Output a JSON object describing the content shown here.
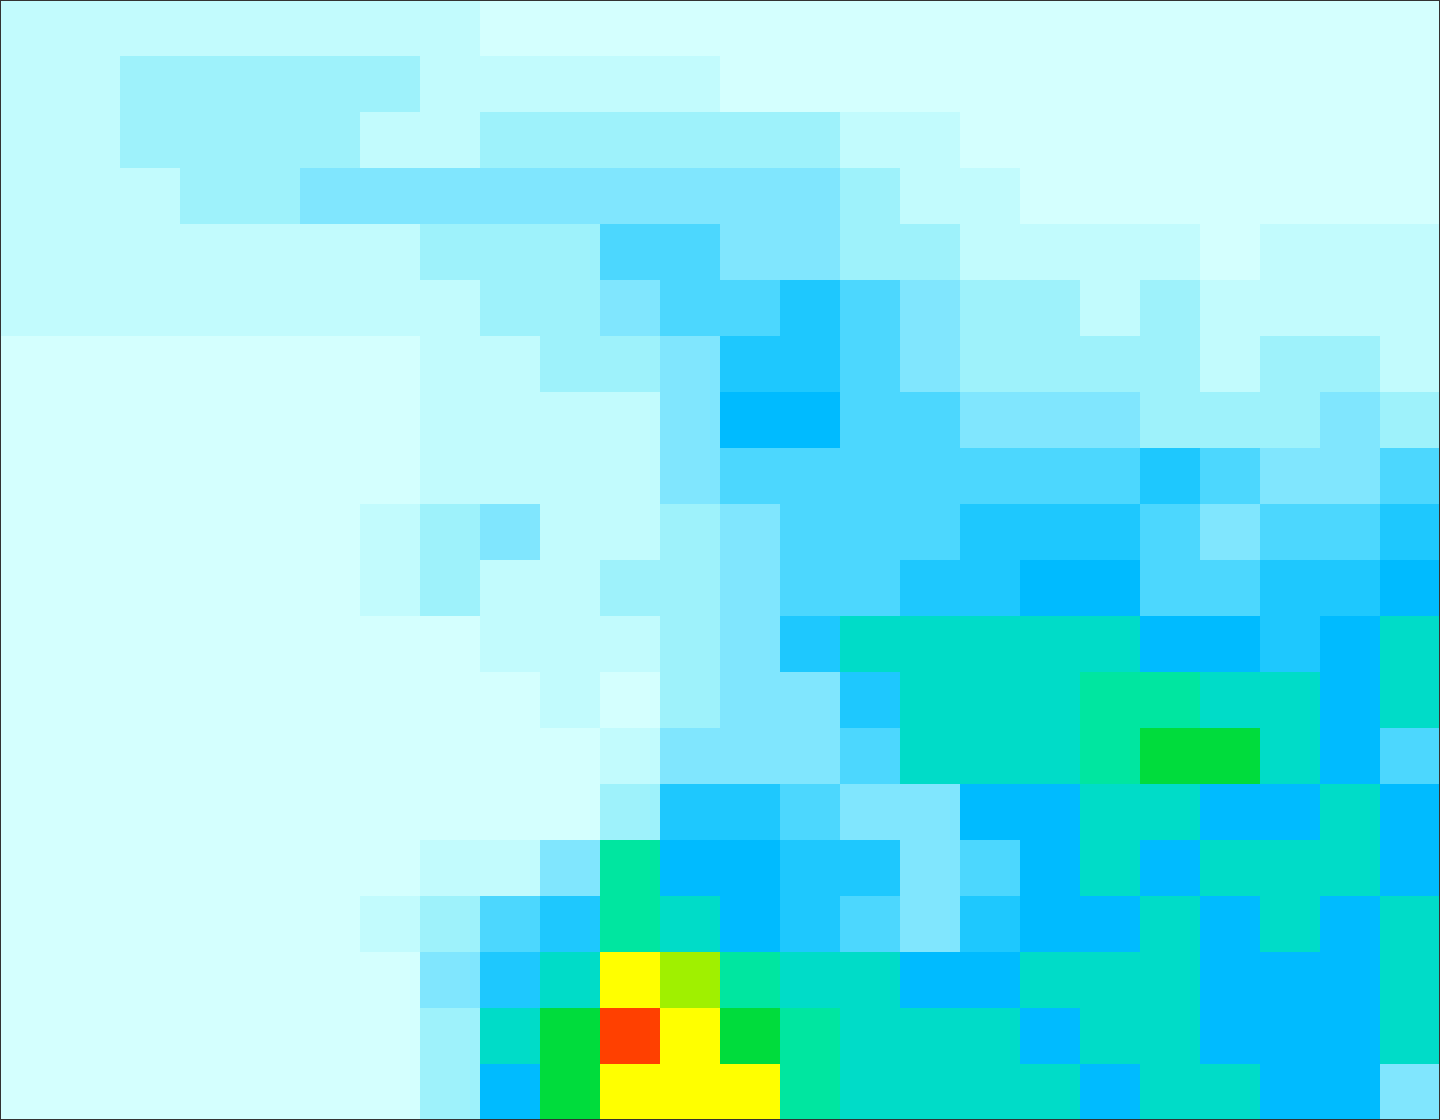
{
  "chart_data": {
    "type": "heatmap",
    "tick_labels": false,
    "xlim": [
      0,
      24
    ],
    "ylim": [
      0,
      20
    ],
    "levels": [
      0,
      1,
      2,
      3,
      4,
      5,
      6,
      7,
      8,
      9,
      10,
      11,
      12
    ],
    "colors": [
      "#d4fffe",
      "#c2fbfd",
      "#9ef2fb",
      "#80e6fe",
      "#4cd7fe",
      "#1ec8fe",
      "#00bbff",
      "#00dcc8",
      "#00e6a0",
      "#00dc3c",
      "#a0f000",
      "#ffff00",
      "#ff4000"
    ],
    "cells": [
      [
        1,
        1,
        1,
        1,
        1,
        1,
        1,
        1,
        0,
        0,
        0,
        0,
        0,
        0,
        0,
        0,
        0,
        0,
        0,
        0,
        0,
        0,
        0,
        0
      ],
      [
        1,
        1,
        2,
        2,
        2,
        2,
        2,
        1,
        1,
        1,
        1,
        1,
        0,
        0,
        0,
        0,
        0,
        0,
        0,
        0,
        0,
        0,
        0,
        0
      ],
      [
        1,
        1,
        2,
        2,
        2,
        2,
        1,
        1,
        2,
        2,
        2,
        2,
        2,
        2,
        1,
        1,
        0,
        0,
        0,
        0,
        0,
        0,
        0,
        0
      ],
      [
        1,
        1,
        1,
        2,
        2,
        3,
        3,
        3,
        3,
        3,
        3,
        3,
        3,
        3,
        2,
        1,
        1,
        0,
        0,
        0,
        0,
        0,
        0,
        0
      ],
      [
        1,
        1,
        1,
        1,
        1,
        1,
        1,
        2,
        2,
        2,
        4,
        4,
        3,
        3,
        2,
        2,
        1,
        1,
        1,
        1,
        0,
        1,
        1,
        1
      ],
      [
        1,
        1,
        1,
        1,
        1,
        1,
        1,
        1,
        2,
        2,
        3,
        4,
        4,
        5,
        4,
        3,
        2,
        2,
        1,
        2,
        1,
        1,
        1,
        1
      ],
      [
        0,
        0,
        0,
        0,
        0,
        0,
        0,
        1,
        1,
        2,
        2,
        3,
        5,
        5,
        4,
        3,
        2,
        2,
        2,
        2,
        1,
        2,
        2,
        1
      ],
      [
        0,
        0,
        0,
        0,
        0,
        0,
        0,
        1,
        1,
        1,
        1,
        3,
        6,
        6,
        4,
        4,
        3,
        3,
        3,
        2,
        2,
        2,
        3,
        2
      ],
      [
        0,
        0,
        0,
        0,
        0,
        0,
        0,
        1,
        1,
        1,
        1,
        3,
        4,
        4,
        4,
        4,
        4,
        4,
        4,
        5,
        4,
        3,
        3,
        4
      ],
      [
        0,
        0,
        0,
        0,
        0,
        0,
        1,
        2,
        3,
        1,
        1,
        2,
        3,
        4,
        4,
        4,
        5,
        5,
        5,
        4,
        3,
        4,
        4,
        5
      ],
      [
        0,
        0,
        0,
        0,
        0,
        0,
        1,
        2,
        1,
        1,
        2,
        2,
        3,
        4,
        4,
        5,
        5,
        6,
        6,
        4,
        4,
        5,
        5,
        6
      ],
      [
        0,
        0,
        0,
        0,
        0,
        0,
        0,
        0,
        1,
        1,
        1,
        2,
        3,
        5,
        7,
        7,
        7,
        7,
        7,
        6,
        6,
        5,
        6,
        7
      ],
      [
        0,
        0,
        0,
        0,
        0,
        0,
        0,
        0,
        0,
        1,
        0,
        2,
        3,
        3,
        5,
        7,
        7,
        7,
        8,
        8,
        7,
        7,
        6,
        7
      ],
      [
        0,
        0,
        0,
        0,
        0,
        0,
        0,
        0,
        0,
        0,
        1,
        3,
        3,
        3,
        4,
        7,
        7,
        7,
        8,
        9,
        9,
        7,
        6,
        4
      ],
      [
        0,
        0,
        0,
        0,
        0,
        0,
        0,
        0,
        0,
        0,
        2,
        5,
        5,
        4,
        3,
        3,
        6,
        6,
        7,
        7,
        6,
        6,
        7,
        6
      ],
      [
        0,
        0,
        0,
        0,
        0,
        0,
        0,
        1,
        1,
        3,
        8,
        6,
        6,
        5,
        5,
        3,
        4,
        6,
        7,
        6,
        7,
        7,
        7,
        6
      ],
      [
        0,
        0,
        0,
        0,
        0,
        0,
        1,
        2,
        4,
        5,
        8,
        7,
        6,
        5,
        4,
        3,
        5,
        6,
        6,
        7,
        6,
        7,
        6,
        7
      ],
      [
        0,
        0,
        0,
        0,
        0,
        0,
        0,
        3,
        5,
        7,
        11,
        10,
        8,
        7,
        7,
        6,
        6,
        7,
        7,
        7,
        6,
        6,
        6,
        7
      ],
      [
        0,
        0,
        0,
        0,
        0,
        0,
        0,
        2,
        7,
        9,
        12,
        11,
        9,
        8,
        7,
        7,
        7,
        6,
        7,
        7,
        6,
        6,
        6,
        7
      ],
      [
        0,
        0,
        0,
        0,
        0,
        0,
        0,
        2,
        6,
        9,
        11,
        11,
        11,
        8,
        7,
        7,
        7,
        7,
        6,
        7,
        7,
        6,
        6,
        3
      ]
    ]
  }
}
